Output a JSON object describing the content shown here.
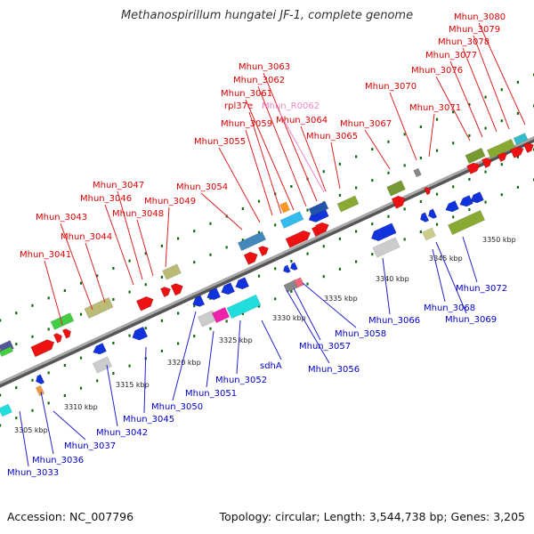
{
  "title": "Methanospirillum hungatei JF-1, complete genome",
  "footer": {
    "accession": "Accession: NC_007796",
    "topology": "Topology: circular; Length: 3,544,738 bp; Genes: 3,205"
  },
  "colors": {
    "forward_label": "#dd0000",
    "reverse_label": "#0000cc",
    "rna_label": "#ee88cc",
    "forward_gene": "#ee1111",
    "reverse_gene": "#1133dd",
    "backbone": "#888888",
    "tick": "#116611"
  },
  "tick_labels": [
    "3305 kbp",
    "3310 kbp",
    "3315 kbp",
    "3320 kbp",
    "3325 kbp",
    "3330 kbp",
    "3335 kbp",
    "3340 kbp",
    "3345 kbp",
    "3350 kbp"
  ],
  "forward_labels": [
    "Mhun_3041",
    "Mhun_3043",
    "Mhun_3044",
    "Mhun_3046",
    "Mhun_3047",
    "Mhun_3048",
    "Mhun_3049",
    "Mhun_3054",
    "Mhun_3055",
    "Mhun_3059",
    "rpl37e",
    "Mhun_3061",
    "Mhun_3062",
    "Mhun_3063",
    "Mhun_3064",
    "Mhun_3065",
    "Mhun_3067",
    "Mhun_3070",
    "Mhun_3071",
    "Mhun_3076",
    "Mhun_3077",
    "Mhun_3078",
    "Mhun_3079",
    "Mhun_3080"
  ],
  "rna_labels": [
    "Mhun_R0062"
  ],
  "reverse_labels": [
    "Mhun_3033",
    "Mhun_3036",
    "Mhun_3037",
    "Mhun_3042",
    "Mhun_3045",
    "Mhun_3050",
    "Mhun_3051",
    "Mhun_3052",
    "sdhA",
    "Mhun_3056",
    "Mhun_3057",
    "Mhun_3058",
    "Mhun_3066",
    "Mhun_3068",
    "Mhun_3069",
    "Mhun_3072"
  ]
}
